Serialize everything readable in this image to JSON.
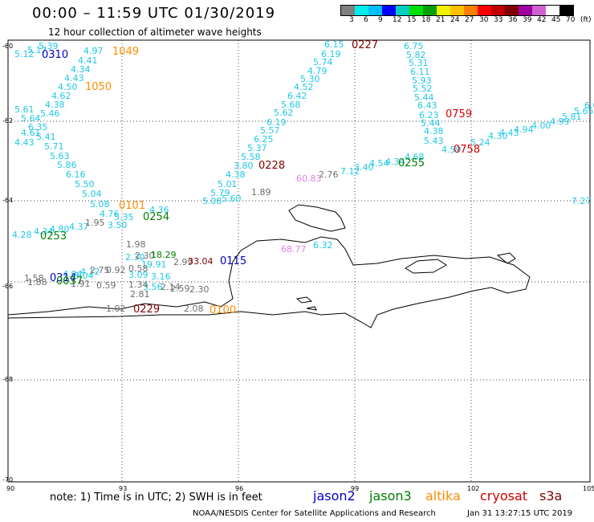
{
  "header": {
    "title": "00:00 – 11:59 UTC 01/30/2019",
    "subtitle": "12 hour collection of altimeter wave heights"
  },
  "colorbar": {
    "colors": [
      "#7f7f7f",
      "#00eded",
      "#00bfff",
      "#0000ff",
      "#00d0c0",
      "#00e000",
      "#00a000",
      "#f0f000",
      "#ffc000",
      "#ff8000",
      "#ff0000",
      "#c00000",
      "#800000",
      "#a000a0",
      "#d060d0",
      "#ffffff",
      "#000000"
    ],
    "labels": [
      "3",
      "6",
      "9",
      "12",
      "15",
      "18",
      "21",
      "24",
      "27",
      "30",
      "33",
      "36",
      "39",
      "42",
      "45",
      "70",
      "(ft)"
    ]
  },
  "axes": {
    "x_ticks": [
      "90",
      "93",
      "96",
      "99",
      "102",
      "105"
    ],
    "y_ticks": [
      "-60",
      "-62",
      "-64",
      "-66",
      "-68",
      "-70"
    ]
  },
  "time_labels": [
    {
      "text": "0310",
      "color": "#0000c0"
    },
    {
      "text": "1049",
      "color": "#ff8c00"
    },
    {
      "text": "1050",
      "color": "#ff8c00"
    },
    {
      "text": "0227",
      "color": "#800000"
    },
    {
      "text": "0759",
      "color": "#d00000"
    },
    {
      "text": "0758",
      "color": "#d00000"
    },
    {
      "text": "0228",
      "color": "#800000"
    },
    {
      "text": "0255",
      "color": "#008000"
    },
    {
      "text": "0101",
      "color": "#ff8c00"
    },
    {
      "text": "0254",
      "color": "#008000"
    },
    {
      "text": "0253",
      "color": "#008000"
    },
    {
      "text": "0115",
      "color": "#0000c0"
    },
    {
      "text": "0314",
      "color": "#0000c0"
    },
    {
      "text": "0037",
      "color": "#008000"
    },
    {
      "text": "0229",
      "color": "#800000"
    },
    {
      "text": "0100",
      "color": "#ff8c00"
    }
  ],
  "wave_labels": [
    "5.12",
    "5.17",
    "5.39",
    "4.97",
    "4.41",
    "4.34",
    "4.43",
    "4.50",
    "4.62",
    "4.38",
    "5.61",
    "5.46",
    "5.64",
    "6.35",
    "4.61",
    "5.41",
    "4.43",
    "5.71",
    "5.63",
    "5.86",
    "6.16",
    "5.50",
    "5.04",
    "5.08",
    "4.76",
    "5.35",
    "4.36",
    "3.50",
    "4.28",
    "4.34",
    "4.80",
    "4.37",
    "6.15",
    "6.19",
    "5.74",
    "4.79",
    "5.30",
    "4.52",
    "6.42",
    "5.68",
    "5.62",
    "6.19",
    "5.57",
    "6.25",
    "5.37",
    "5.58",
    "3.80",
    "4.38",
    "5.01",
    "5.79",
    "5.60",
    "5.08",
    "6.75",
    "5.82",
    "5.31",
    "6.11",
    "5.93",
    "5.52",
    "5.44",
    "6.43",
    "6.23",
    "5.44",
    "4.38",
    "5.43",
    "4.59",
    "5.24",
    "4.30",
    "4.43",
    "4.94",
    "4.00",
    "4.99",
    "5.81",
    "5.65",
    "6.08",
    "6.0",
    "7.12",
    "3.40",
    "4.54",
    "4.34",
    "4.68",
    "7.27",
    "6.32",
    "4.04",
    "4.12",
    "3.04",
    "3.09",
    "3.16",
    "3.56",
    "19.91",
    "2.30"
  ],
  "gray_labels": [
    "1.95",
    "1.89",
    "2.76",
    "1.98",
    "2.30",
    "2.99",
    "2.75",
    "0.92",
    "0.58",
    "1.91",
    "0.59",
    "1.34",
    "2.14",
    "2.59",
    "2.30",
    "2.81",
    "1.02",
    "2.08",
    "1.58",
    "1.88"
  ],
  "other_labels": [
    {
      "text": "60.83",
      "color": "#e080e0"
    },
    {
      "text": "68.77",
      "color": "#e080e0"
    },
    {
      "text": "33.04",
      "color": "#800000"
    },
    {
      "text": "18.29",
      "color": "#008000"
    }
  ],
  "footer": {
    "note": "note:  1) Time is in UTC;  2) SWH is in feet",
    "legend": [
      {
        "text": "jason2",
        "color": "#0000c0"
      },
      {
        "text": "jason3",
        "color": "#008000"
      },
      {
        "text": "altika",
        "color": "#ff8c00"
      },
      {
        "text": "cryosat",
        "color": "#d00000"
      },
      {
        "text": "s3a",
        "color": "#800000"
      }
    ],
    "credit": "NOAA/NESDIS Center for Satellite Applications and Research",
    "timestamp": "Jan 31 13:27:15 UTC 2019"
  }
}
